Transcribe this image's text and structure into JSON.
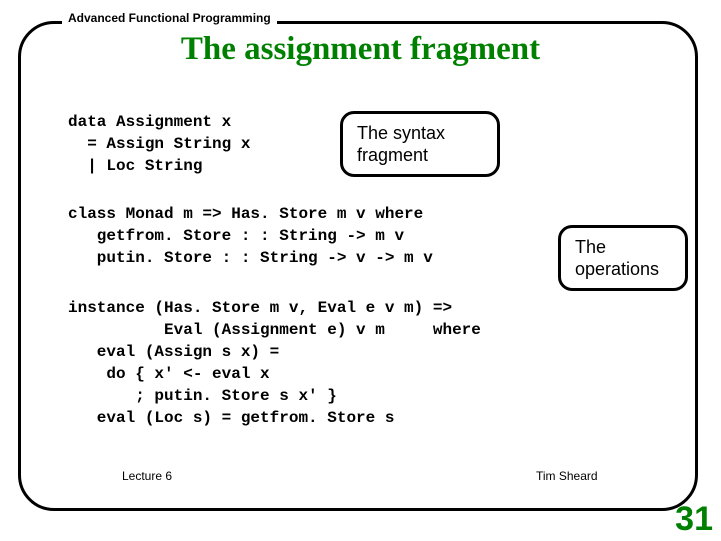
{
  "header_label": "Advanced Functional Programming",
  "title": "The assignment fragment",
  "code": {
    "block1": "data Assignment x\n  = Assign String x\n  | Loc String",
    "block2": "class Monad m => Has. Store m v where\n   getfrom. Store : : String -> m v\n   putin. Store : : String -> v -> m v",
    "block3": "instance (Has. Store m v, Eval e v m) =>\n          Eval (Assignment e) v m     where\n   eval (Assign s x) =\n    do { x' <- eval x\n       ; putin. Store s x' }\n   eval (Loc s) = getfrom. Store s"
  },
  "callouts": {
    "syntax": "The syntax\nfragment",
    "operations": "The\noperations"
  },
  "footer": {
    "left": "Lecture 6",
    "right": "Tim Sheard"
  },
  "page_number": "31",
  "colors": {
    "title_color": "#008000",
    "border_color": "#000000",
    "background": "#ffffff"
  }
}
